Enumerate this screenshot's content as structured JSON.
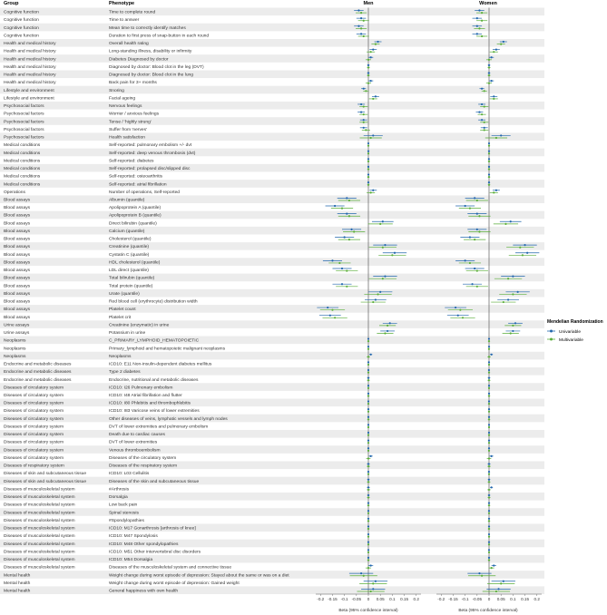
{
  "chart_data": {
    "type": "forest",
    "headers": {
      "group": "Group",
      "phenotype": "Phenotype"
    },
    "panels": [
      "Men",
      "Women"
    ],
    "xlabel": "Beta (95% confidence interval)",
    "xticks": [
      "-0.2",
      "-0.15",
      "-0.1",
      "-0.05",
      "0",
      "0.05",
      "0.1",
      "0.15",
      "0.2"
    ],
    "xlim": [
      -0.22,
      0.22
    ],
    "legend": {
      "title": "Mendelian Randomization",
      "items": [
        {
          "name": "Univariable",
          "color": "#2166ac"
        },
        {
          "name": "Multivariable",
          "color": "#5aae3a"
        }
      ],
      "placement": "right"
    },
    "colors": {
      "univariable": "#2166ac",
      "multivariable": "#5aae3a",
      "row_shade": "#ececec",
      "zero_line": "#444444"
    },
    "rows": [
      {
        "group": "Cognitive function",
        "phenotype": "Time to complete round",
        "men": [
          -0.04,
          -0.03
        ],
        "women": [
          -0.04,
          -0.03
        ],
        "ci": 0.02
      },
      {
        "group": "Cognitive function",
        "phenotype": "Time to answer",
        "men": [
          -0.03,
          -0.02
        ],
        "women": [
          -0.05,
          -0.03
        ],
        "ci": 0.02
      },
      {
        "group": "Cognitive function",
        "phenotype": "Mean time to correctly identify matches",
        "men": [
          -0.04,
          -0.03
        ],
        "women": [
          -0.05,
          -0.04
        ],
        "ci": 0.02
      },
      {
        "group": "Cognitive function",
        "phenotype": "Duration to first press of snap-button in each round",
        "men": [
          -0.03,
          -0.02
        ],
        "women": [
          -0.05,
          -0.03
        ],
        "ci": 0.02
      },
      {
        "group": "Health and medical history",
        "phenotype": "Overall health rating",
        "men": [
          0.04,
          0.03
        ],
        "women": [
          0.06,
          0.05
        ],
        "ci": 0.015
      },
      {
        "group": "Health and medical history",
        "phenotype": "Long-standing illness, disability or infirmity",
        "men": [
          0.02,
          0.01
        ],
        "women": [
          0.03,
          0.02
        ],
        "ci": 0.015
      },
      {
        "group": "Health and medical history",
        "phenotype": "Diabetes Diagnosed by doctor",
        "men": [
          0.01,
          0.0
        ],
        "women": [
          0.01,
          0.0
        ],
        "ci": 0.01
      },
      {
        "group": "Health and medical history",
        "phenotype": "Diagnosed by doctor: Blood clot in the leg (DVT)",
        "men": [
          0.0,
          0.0
        ],
        "women": [
          0.0,
          0.0
        ],
        "ci": 0.005
      },
      {
        "group": "Health and medical history",
        "phenotype": "Diagnosed by doctor: Blood clot in the lung",
        "men": [
          0.0,
          0.0
        ],
        "women": [
          0.0,
          0.0
        ],
        "ci": 0.005
      },
      {
        "group": "Health and medical history",
        "phenotype": "Back pain for 3+ months",
        "men": [
          0.01,
          0.0
        ],
        "women": [
          0.01,
          0.0
        ],
        "ci": 0.01
      },
      {
        "group": "Lifestyle and environment",
        "phenotype": "Snoring",
        "men": [
          -0.02,
          -0.01
        ],
        "women": [
          -0.03,
          -0.02
        ],
        "ci": 0.01
      },
      {
        "group": "Lifestyle and environment",
        "phenotype": "Facial ageing",
        "men": [
          0.03,
          0.02
        ],
        "women": [
          0.02,
          0.02
        ],
        "ci": 0.015
      },
      {
        "group": "Psychosocial factors",
        "phenotype": "Nervous feelings",
        "men": [
          -0.03,
          -0.02
        ],
        "women": [
          -0.03,
          -0.02
        ],
        "ci": 0.015
      },
      {
        "group": "Psychosocial factors",
        "phenotype": "Worrier / anxious feelings",
        "men": [
          -0.03,
          -0.02
        ],
        "women": [
          -0.04,
          -0.03
        ],
        "ci": 0.015
      },
      {
        "group": "Psychosocial factors",
        "phenotype": "Tense / 'highly strung'",
        "men": [
          -0.02,
          -0.02
        ],
        "women": [
          -0.03,
          -0.02
        ],
        "ci": 0.015
      },
      {
        "group": "Psychosocial factors",
        "phenotype": "Suffer from 'nerves'",
        "men": [
          -0.02,
          -0.01
        ],
        "women": [
          -0.02,
          -0.02
        ],
        "ci": 0.015
      },
      {
        "group": "Psychosocial factors",
        "phenotype": "Health satisfaction",
        "men": [
          0.02,
          0.01
        ],
        "women": [
          0.05,
          0.03
        ],
        "ci": 0.04
      },
      {
        "group": "Medical conditions",
        "phenotype": "Self-reported: pulmonary embolism +/- dvt",
        "men": [
          0.0,
          0.0
        ],
        "women": [
          0.0,
          0.0
        ],
        "ci": 0.003
      },
      {
        "group": "Medical conditions",
        "phenotype": "Self-reported: deep venous thrombosis (dvt)",
        "men": [
          0.0,
          0.0
        ],
        "women": [
          0.0,
          0.0
        ],
        "ci": 0.003
      },
      {
        "group": "Medical conditions",
        "phenotype": "Self-reported: diabetes",
        "men": [
          0.0,
          0.0
        ],
        "women": [
          0.0,
          0.0
        ],
        "ci": 0.004
      },
      {
        "group": "Medical conditions",
        "phenotype": "Self-reported: prolapsed disc/slipped disc",
        "men": [
          0.0,
          0.0
        ],
        "women": [
          0.0,
          0.0
        ],
        "ci": 0.004
      },
      {
        "group": "Medical conditions",
        "phenotype": "Self-reported: osteoarthritis",
        "men": [
          0.0,
          0.0
        ],
        "women": [
          0.0,
          0.0
        ],
        "ci": 0.004
      },
      {
        "group": "Medical conditions",
        "phenotype": "Self-reported: atrial fibrillation",
        "men": [
          0.0,
          0.0
        ],
        "women": [
          0.0,
          0.0
        ],
        "ci": 0.004
      },
      {
        "group": "Operations",
        "phenotype": "Number of operations, Self-reported",
        "men": [
          0.02,
          0.01
        ],
        "women": [
          0.03,
          0.02
        ],
        "ci": 0.015
      },
      {
        "group": "Blood assays",
        "phenotype": "Albumin (quantile)",
        "men": [
          -0.09,
          -0.08
        ],
        "women": [
          -0.06,
          -0.05
        ],
        "ci": 0.04
      },
      {
        "group": "Blood assays",
        "phenotype": "Apolipoprotein A (quantile)",
        "men": [
          -0.14,
          -0.11
        ],
        "women": [
          -0.1,
          -0.08
        ],
        "ci": 0.04
      },
      {
        "group": "Blood assays",
        "phenotype": "Apolipoprotein B (quantile)",
        "men": [
          -0.09,
          -0.08
        ],
        "women": [
          -0.05,
          -0.04
        ],
        "ci": 0.04
      },
      {
        "group": "Blood assays",
        "phenotype": "Direct bilirubin (quantile)",
        "men": [
          0.06,
          0.05
        ],
        "women": [
          0.09,
          0.07
        ],
        "ci": 0.045
      },
      {
        "group": "Blood assays",
        "phenotype": "Calcium (quantile)",
        "men": [
          -0.07,
          -0.06
        ],
        "women": [
          -0.05,
          -0.04
        ],
        "ci": 0.04
      },
      {
        "group": "Blood assays",
        "phenotype": "Cholesterol (quantile)",
        "men": [
          -0.1,
          -0.08
        ],
        "women": [
          -0.08,
          -0.06
        ],
        "ci": 0.04
      },
      {
        "group": "Blood assays",
        "phenotype": "Creatinine (quantile)",
        "men": [
          0.07,
          0.06
        ],
        "women": [
          0.15,
          0.13
        ],
        "ci": 0.05
      },
      {
        "group": "Blood assays",
        "phenotype": "Cystatin C (quantile)",
        "men": [
          0.11,
          0.1
        ],
        "women": [
          0.16,
          0.14
        ],
        "ci": 0.05
      },
      {
        "group": "Blood assays",
        "phenotype": "HDL cholesterol (quantile)",
        "men": [
          -0.15,
          -0.12
        ],
        "women": [
          -0.1,
          -0.08
        ],
        "ci": 0.04
      },
      {
        "group": "Blood assays",
        "phenotype": "LDL direct (quantile)",
        "men": [
          -0.11,
          -0.09
        ],
        "women": [
          -0.06,
          -0.05
        ],
        "ci": 0.04
      },
      {
        "group": "Blood assays",
        "phenotype": "Total bilirubin (quantile)",
        "men": [
          0.07,
          0.06
        ],
        "women": [
          0.1,
          0.08
        ],
        "ci": 0.05
      },
      {
        "group": "Blood assays",
        "phenotype": "Total protein (quantile)",
        "men": [
          -0.11,
          -0.09
        ],
        "women": [
          -0.07,
          -0.05
        ],
        "ci": 0.04
      },
      {
        "group": "Blood assays",
        "phenotype": "Urate (quantile)",
        "men": [
          0.05,
          0.04
        ],
        "women": [
          0.12,
          0.1
        ],
        "ci": 0.05
      },
      {
        "group": "Blood assays",
        "phenotype": "Red blood cell (erythrocyte) distribution width",
        "men": [
          0.03,
          0.02
        ],
        "women": [
          0.08,
          0.06
        ],
        "ci": 0.045
      },
      {
        "group": "Blood assays",
        "phenotype": "Platelet count",
        "men": [
          -0.17,
          -0.15
        ],
        "women": [
          -0.14,
          -0.12
        ],
        "ci": 0.045
      },
      {
        "group": "Blood assays",
        "phenotype": "Platelet crit",
        "men": [
          -0.16,
          -0.14
        ],
        "women": [
          -0.13,
          -0.11
        ],
        "ci": 0.045
      },
      {
        "group": "Urine assays",
        "phenotype": "Creatinine (enzymatic) in urine",
        "men": [
          0.09,
          0.08
        ],
        "women": [
          0.11,
          0.1
        ],
        "ci": 0.03
      },
      {
        "group": "Urine assays",
        "phenotype": "Potassium in urine",
        "men": [
          0.08,
          0.07
        ],
        "women": [
          0.1,
          0.09
        ],
        "ci": 0.03
      },
      {
        "group": "Neoplasms",
        "phenotype": "C_PRIMARY_LYMPHOID_HEMATOPOIETIC",
        "men": [
          0.0,
          0.0
        ],
        "women": [
          0.0,
          0.0
        ],
        "ci": 0.002
      },
      {
        "group": "Neoplasms",
        "phenotype": "Primary_lymphoid and hematopoietic malignant neoplasms",
        "men": [
          0.0,
          0.0
        ],
        "women": [
          0.0,
          0.0
        ],
        "ci": 0.002
      },
      {
        "group": "Neoplasms",
        "phenotype": "Neoplasms",
        "men": [
          0.01,
          0.0
        ],
        "women": [
          0.01,
          0.0
        ],
        "ci": 0.006
      },
      {
        "group": "Endocrine and metabolic diseases",
        "phenotype": "ICD10: E11 Non-insulin-dependent diabetes mellitus",
        "men": [
          0.0,
          0.0
        ],
        "women": [
          0.0,
          0.0
        ],
        "ci": 0.003
      },
      {
        "group": "Endocrine and metabolic diseases",
        "phenotype": "Type 2 diabetes",
        "men": [
          0.0,
          0.0
        ],
        "women": [
          0.0,
          0.0
        ],
        "ci": 0.003
      },
      {
        "group": "Endocrine and metabolic diseases",
        "phenotype": "Endocrine, nutritional and metabolic diseases",
        "men": [
          0.0,
          0.0
        ],
        "women": [
          0.0,
          0.0
        ],
        "ci": 0.005
      },
      {
        "group": "Diseases of circulatory system",
        "phenotype": "ICD10: I26 Pulmonary embolism",
        "men": [
          0.0,
          0.0
        ],
        "women": [
          0.0,
          0.0
        ],
        "ci": 0.002
      },
      {
        "group": "Diseases of circulatory system",
        "phenotype": "ICD10: I48 Atrial fibrillation and flutter",
        "men": [
          0.0,
          0.0
        ],
        "women": [
          0.0,
          0.0
        ],
        "ci": 0.004
      },
      {
        "group": "Diseases of circulatory system",
        "phenotype": "ICD10: I80 Phlebitis and thrombophlebitis",
        "men": [
          0.0,
          0.0
        ],
        "women": [
          0.0,
          0.0
        ],
        "ci": 0.002
      },
      {
        "group": "Diseases of circulatory system",
        "phenotype": "ICD10: I83 Varicose veins of lower extremities",
        "men": [
          0.0,
          0.0
        ],
        "women": [
          0.0,
          0.0
        ],
        "ci": 0.003
      },
      {
        "group": "Diseases of circulatory system",
        "phenotype": "Other diseases of veins, lymphatic vessels and lymph nodes",
        "men": [
          0.0,
          0.0
        ],
        "women": [
          0.0,
          0.0
        ],
        "ci": 0.004
      },
      {
        "group": "Diseases of circulatory system",
        "phenotype": "DVT of lower extremities and pulmonary embolism",
        "men": [
          0.0,
          0.0
        ],
        "women": [
          0.0,
          0.0
        ],
        "ci": 0.003
      },
      {
        "group": "Diseases of circulatory system",
        "phenotype": "Death due to cardiac causes",
        "men": [
          0.0,
          0.0
        ],
        "women": [
          0.0,
          0.0
        ],
        "ci": 0.002
      },
      {
        "group": "Diseases of circulatory system",
        "phenotype": "DVT of lower extremities",
        "men": [
          0.0,
          0.0
        ],
        "women": [
          0.0,
          0.0
        ],
        "ci": 0.002
      },
      {
        "group": "Diseases of circulatory system",
        "phenotype": "Venous thromboembolism",
        "men": [
          0.0,
          0.0
        ],
        "women": [
          0.0,
          0.0
        ],
        "ci": 0.003
      },
      {
        "group": "Diseases of circulatory system",
        "phenotype": "Diseases of the circulatory system",
        "men": [
          0.01,
          0.0
        ],
        "women": [
          0.01,
          0.0
        ],
        "ci": 0.008
      },
      {
        "group": "Diseases of respiratory system",
        "phenotype": "Diseases of the respiratory system",
        "men": [
          0.0,
          0.0
        ],
        "women": [
          0.0,
          0.0
        ],
        "ci": 0.006
      },
      {
        "group": "Diseases of skin and subcutaneous tissue",
        "phenotype": "ICD10: L03 Cellulitis",
        "men": [
          0.0,
          0.0
        ],
        "women": [
          0.0,
          0.0
        ],
        "ci": 0.002
      },
      {
        "group": "Diseases of skin and subcutaneous tissue",
        "phenotype": "Diseases of the skin and subcutaneous tissue",
        "men": [
          0.0,
          0.0
        ],
        "women": [
          0.0,
          0.0
        ],
        "ci": 0.005
      },
      {
        "group": "Diseases of musculoskeletal system",
        "phenotype": "#Arthrosis",
        "men": [
          0.0,
          0.0
        ],
        "women": [
          0.01,
          0.0
        ],
        "ci": 0.006
      },
      {
        "group": "Diseases of musculoskeletal system",
        "phenotype": "Dorsalgia",
        "men": [
          0.0,
          0.0
        ],
        "women": [
          0.0,
          0.0
        ],
        "ci": 0.005
      },
      {
        "group": "Diseases of musculoskeletal system",
        "phenotype": "Low back pain",
        "men": [
          0.0,
          0.0
        ],
        "women": [
          0.0,
          0.0
        ],
        "ci": 0.004
      },
      {
        "group": "Diseases of musculoskeletal system",
        "phenotype": "Spinal stenosis",
        "men": [
          0.0,
          0.0
        ],
        "women": [
          0.0,
          0.0
        ],
        "ci": 0.002
      },
      {
        "group": "Diseases of musculoskeletal system",
        "phenotype": "#Spondylopathies",
        "men": [
          0.0,
          0.0
        ],
        "women": [
          0.0,
          0.0
        ],
        "ci": 0.004
      },
      {
        "group": "Diseases of musculoskeletal system",
        "phenotype": "ICD10: M17 Gonarthrosis [arthrosis of knee]",
        "men": [
          0.0,
          0.0
        ],
        "women": [
          0.0,
          0.0
        ],
        "ci": 0.004
      },
      {
        "group": "Diseases of musculoskeletal system",
        "phenotype": "ICD10: M47 Spondylosis",
        "men": [
          0.0,
          0.0
        ],
        "women": [
          0.0,
          0.0
        ],
        "ci": 0.003
      },
      {
        "group": "Diseases of musculoskeletal system",
        "phenotype": "ICD10: M48 Other spondylopathies",
        "men": [
          0.0,
          0.0
        ],
        "women": [
          0.0,
          0.0
        ],
        "ci": 0.002
      },
      {
        "group": "Diseases of musculoskeletal system",
        "phenotype": "ICD10: M51 Other intervertebral disc disorders",
        "men": [
          0.0,
          0.0
        ],
        "women": [
          0.0,
          0.0
        ],
        "ci": 0.002
      },
      {
        "group": "Diseases of musculoskeletal system",
        "phenotype": "ICD10: M54 Dorsalgia",
        "men": [
          0.0,
          0.0
        ],
        "women": [
          0.0,
          0.0
        ],
        "ci": 0.004
      },
      {
        "group": "Diseases of musculoskeletal system",
        "phenotype": "Diseases of the musculoskeletal system and connective tissue",
        "men": [
          0.01,
          0.0
        ],
        "women": [
          0.02,
          0.01
        ],
        "ci": 0.01
      },
      {
        "group": "Mental health",
        "phenotype": "Weight change during worst episode of depression: Stayed about the same or was on a diet",
        "men": [
          -0.03,
          -0.02
        ],
        "women": [
          -0.04,
          -0.03
        ],
        "ci": 0.05
      },
      {
        "group": "Mental health",
        "phenotype": "Weight change during worst episode of depression: Gained weight",
        "men": [
          0.03,
          0.02
        ],
        "women": [
          0.06,
          0.05
        ],
        "ci": 0.05
      },
      {
        "group": "Mental health",
        "phenotype": "General happiness with own health",
        "men": [
          0.02,
          0.01
        ],
        "women": [
          0.04,
          0.03
        ],
        "ci": 0.05
      }
    ]
  }
}
